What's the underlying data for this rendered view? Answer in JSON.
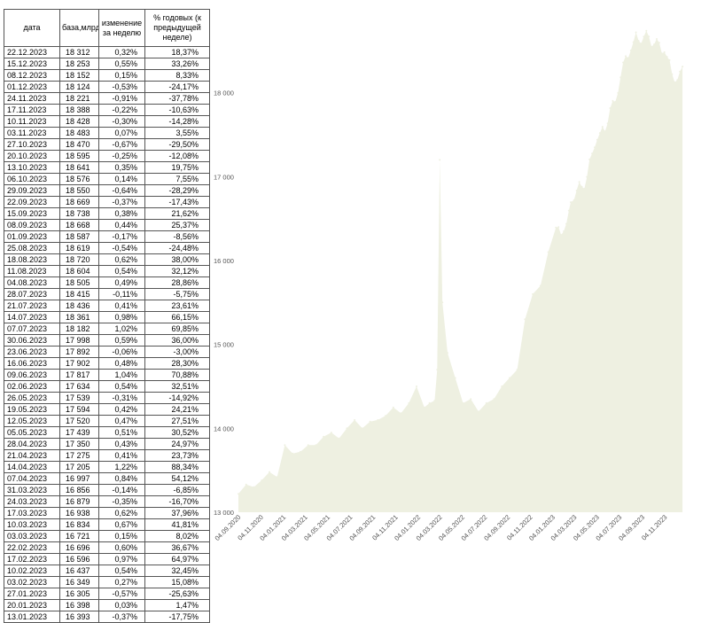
{
  "table": {
    "headers": [
      "дата",
      "база,млрд.р.",
      "изменение за неделю",
      "% годовых (к предыдущей неделе)"
    ],
    "rows": [
      [
        "22.12.2023",
        "18 312",
        "0,32%",
        "18,37%"
      ],
      [
        "15.12.2023",
        "18 253",
        "0,55%",
        "33,26%"
      ],
      [
        "08.12.2023",
        "18 152",
        "0,15%",
        "8,33%"
      ],
      [
        "01.12.2023",
        "18 124",
        "-0,53%",
        "-24,17%"
      ],
      [
        "24.11.2023",
        "18 221",
        "-0,91%",
        "-37,78%"
      ],
      [
        "17.11.2023",
        "18 388",
        "-0,22%",
        "-10,63%"
      ],
      [
        "10.11.2023",
        "18 428",
        "-0,30%",
        "-14,28%"
      ],
      [
        "03.11.2023",
        "18 483",
        "0,07%",
        "3,55%"
      ],
      [
        "27.10.2023",
        "18 470",
        "-0,67%",
        "-29,50%"
      ],
      [
        "20.10.2023",
        "18 595",
        "-0,25%",
        "-12,08%"
      ],
      [
        "13.10.2023",
        "18 641",
        "0,35%",
        "19,75%"
      ],
      [
        "06.10.2023",
        "18 576",
        "0,14%",
        "7,55%"
      ],
      [
        "29.09.2023",
        "18 550",
        "-0,64%",
        "-28,29%"
      ],
      [
        "22.09.2023",
        "18 669",
        "-0,37%",
        "-17,43%"
      ],
      [
        "15.09.2023",
        "18 738",
        "0,38%",
        "21,62%"
      ],
      [
        "08.09.2023",
        "18 668",
        "0,44%",
        "25,37%"
      ],
      [
        "01.09.2023",
        "18 587",
        "-0,17%",
        "-8,56%"
      ],
      [
        "25.08.2023",
        "18 619",
        "-0,54%",
        "-24,48%"
      ],
      [
        "18.08.2023",
        "18 720",
        "0,62%",
        "38,00%"
      ],
      [
        "11.08.2023",
        "18 604",
        "0,54%",
        "32,12%"
      ],
      [
        "04.08.2023",
        "18 505",
        "0,49%",
        "28,86%"
      ],
      [
        "28.07.2023",
        "18 415",
        "-0,11%",
        "-5,75%"
      ],
      [
        "21.07.2023",
        "18 436",
        "0,41%",
        "23,61%"
      ],
      [
        "14.07.2023",
        "18 361",
        "0,98%",
        "66,15%"
      ],
      [
        "07.07.2023",
        "18 182",
        "1,02%",
        "69,85%"
      ],
      [
        "30.06.2023",
        "17 998",
        "0,59%",
        "36,00%"
      ],
      [
        "23.06.2023",
        "17 892",
        "-0,06%",
        "-3,00%"
      ],
      [
        "16.06.2023",
        "17 902",
        "0,48%",
        "28,30%"
      ],
      [
        "09.06.2023",
        "17 817",
        "1,04%",
        "70,88%"
      ],
      [
        "02.06.2023",
        "17 634",
        "0,54%",
        "32,51%"
      ],
      [
        "26.05.2023",
        "17 539",
        "-0,31%",
        "-14,92%"
      ],
      [
        "19.05.2023",
        "17 594",
        "0,42%",
        "24,21%"
      ],
      [
        "12.05.2023",
        "17 520",
        "0,47%",
        "27,51%"
      ],
      [
        "05.05.2023",
        "17 439",
        "0,51%",
        "30,52%"
      ],
      [
        "28.04.2023",
        "17 350",
        "0,43%",
        "24,97%"
      ],
      [
        "21.04.2023",
        "17 275",
        "0,41%",
        "23,73%"
      ],
      [
        "14.04.2023",
        "17 205",
        "1,22%",
        "88,34%"
      ],
      [
        "07.04.2023",
        "16 997",
        "0,84%",
        "54,12%"
      ],
      [
        "31.03.2023",
        "16 856",
        "-0,14%",
        "-6,85%"
      ],
      [
        "24.03.2023",
        "16 879",
        "-0,35%",
        "-16,70%"
      ],
      [
        "17.03.2023",
        "16 938",
        "0,62%",
        "37,96%"
      ],
      [
        "10.03.2023",
        "16 834",
        "0,67%",
        "41,81%"
      ],
      [
        "03.03.2023",
        "16 721",
        "0,15%",
        "8,02%"
      ],
      [
        "22.02.2023",
        "16 696",
        "0,60%",
        "36,67%"
      ],
      [
        "17.02.2023",
        "16 596",
        "0,97%",
        "64,97%"
      ],
      [
        "10.02.2023",
        "16 437",
        "0,54%",
        "32,45%"
      ],
      [
        "03.02.2023",
        "16 349",
        "0,27%",
        "15,08%"
      ],
      [
        "27.01.2023",
        "16 305",
        "-0,57%",
        "-25,63%"
      ],
      [
        "20.01.2023",
        "16 398",
        "0,03%",
        "1,47%"
      ],
      [
        "13.01.2023",
        "16 393",
        "-0,37%",
        "-17,75%"
      ]
    ]
  },
  "chart_data": {
    "type": "area",
    "title": "",
    "xlabel": "",
    "ylabel": "",
    "ylim": [
      13000,
      19000
    ],
    "yticks": [
      13000,
      14000,
      15000,
      16000,
      17000,
      18000
    ],
    "ytick_labels": [
      "13 000",
      "14 000",
      "15 000",
      "16 000",
      "17 000",
      "18 000"
    ],
    "xlim": [
      "2020-09-04",
      "2023-12-29"
    ],
    "xticks": [
      "2020-09-04",
      "2020-11-04",
      "2021-01-04",
      "2021-03-04",
      "2021-05-04",
      "2021-07-04",
      "2021-09-04",
      "2021-11-04",
      "2022-01-04",
      "2022-03-04",
      "2022-05-04",
      "2022-07-04",
      "2022-09-04",
      "2022-11-04",
      "2023-01-04",
      "2023-03-04",
      "2023-05-04",
      "2023-07-04",
      "2023-09-04",
      "2023-11-04"
    ],
    "xtick_labels": [
      "04.09.2020",
      "04.11.2020",
      "04.01.2021",
      "04.03.2021",
      "04.05.2021",
      "04.07.2021",
      "04.09.2021",
      "04.11.2021",
      "04.01.2022",
      "04.03.2022",
      "04.05.2022",
      "04.07.2022",
      "04.09.2022",
      "04.11.2022",
      "04.01.2023",
      "04.03.2023",
      "04.05.2023",
      "04.07.2023",
      "04.09.2023",
      "04.11.2023"
    ],
    "grid": false,
    "legend": "none",
    "fill_color": "#eef0e1",
    "x": [
      "2020-09-04",
      "2020-09-25",
      "2020-10-16",
      "2020-11-06",
      "2020-11-27",
      "2020-12-18",
      "2021-01-08",
      "2021-01-29",
      "2021-02-19",
      "2021-03-12",
      "2021-04-02",
      "2021-04-23",
      "2021-05-14",
      "2021-06-04",
      "2021-06-25",
      "2021-07-16",
      "2021-08-06",
      "2021-08-27",
      "2021-09-17",
      "2021-10-08",
      "2021-10-29",
      "2021-11-19",
      "2021-12-10",
      "2021-12-31",
      "2022-01-21",
      "2022-02-04",
      "2022-02-18",
      "2022-02-25",
      "2022-03-04",
      "2022-03-11",
      "2022-03-25",
      "2022-04-15",
      "2022-05-06",
      "2022-05-27",
      "2022-06-17",
      "2022-07-08",
      "2022-07-29",
      "2022-08-19",
      "2022-09-09",
      "2022-09-30",
      "2022-10-21",
      "2022-11-11",
      "2022-12-02",
      "2022-12-23",
      "2023-01-13",
      "2023-01-20",
      "2023-01-27",
      "2023-02-03",
      "2023-02-10",
      "2023-02-17",
      "2023-02-22",
      "2023-03-03",
      "2023-03-10",
      "2023-03-17",
      "2023-03-24",
      "2023-03-31",
      "2023-04-07",
      "2023-04-14",
      "2023-04-21",
      "2023-04-28",
      "2023-05-05",
      "2023-05-12",
      "2023-05-19",
      "2023-05-26",
      "2023-06-02",
      "2023-06-09",
      "2023-06-16",
      "2023-06-23",
      "2023-06-30",
      "2023-07-07",
      "2023-07-14",
      "2023-07-21",
      "2023-07-28",
      "2023-08-04",
      "2023-08-11",
      "2023-08-18",
      "2023-08-25",
      "2023-09-01",
      "2023-09-08",
      "2023-09-15",
      "2023-09-22",
      "2023-09-29",
      "2023-10-06",
      "2023-10-13",
      "2023-10-20",
      "2023-10-27",
      "2023-11-03",
      "2023-11-10",
      "2023-11-17",
      "2023-11-24",
      "2023-12-01",
      "2023-12-08",
      "2023-12-15",
      "2023-12-22"
    ],
    "series": [
      {
        "values": [
          13220,
          13330,
          13300,
          13380,
          13480,
          13420,
          13800,
          13700,
          13720,
          13800,
          13800,
          13900,
          13950,
          13880,
          14000,
          14100,
          14000,
          14080,
          14100,
          14150,
          14250,
          14180,
          14300,
          14500,
          14250,
          14300,
          14330,
          14700,
          17200,
          15500,
          14900,
          14600,
          14300,
          14350,
          14200,
          14300,
          14350,
          14500,
          14600,
          14700,
          15300,
          15600,
          15700,
          16100,
          16393,
          16398,
          16305,
          16349,
          16437,
          16596,
          16696,
          16721,
          16834,
          16938,
          16879,
          16856,
          16997,
          17205,
          17275,
          17350,
          17439,
          17520,
          17594,
          17539,
          17634,
          17817,
          17902,
          17892,
          17998,
          18182,
          18361,
          18436,
          18415,
          18505,
          18604,
          18720,
          18619,
          18587,
          18668,
          18738,
          18669,
          18550,
          18576,
          18641,
          18595,
          18470,
          18483,
          18428,
          18388,
          18221,
          18124,
          18152,
          18253,
          18312
        ]
      }
    ]
  }
}
